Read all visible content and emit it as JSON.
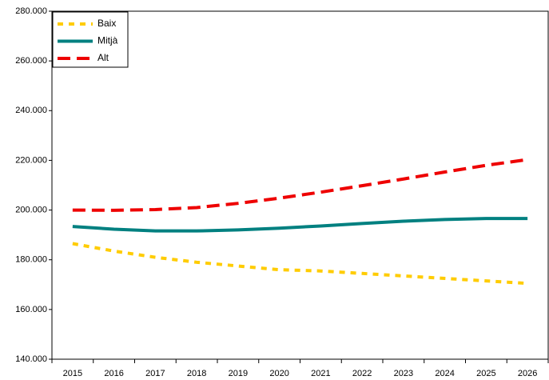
{
  "chart_data": {
    "type": "line",
    "categories": [
      "2015",
      "2016",
      "2017",
      "2018",
      "2019",
      "2020",
      "2021",
      "2022",
      "2023",
      "2024",
      "2025",
      "2026"
    ],
    "series": [
      {
        "name": "Baix",
        "color": "#ffcc00",
        "values": [
          186500,
          183500,
          181000,
          179000,
          177500,
          176000,
          175500,
          174500,
          173500,
          172500,
          171500,
          170500
        ]
      },
      {
        "name": "Mitjà",
        "color": "#008080",
        "values": [
          193400,
          192300,
          191600,
          191600,
          192000,
          192700,
          193600,
          194600,
          195500,
          196200,
          196600,
          196600
        ]
      },
      {
        "name": "Alt",
        "color": "#ee0000",
        "values": [
          200000,
          199900,
          200200,
          201000,
          202700,
          204800,
          207200,
          209800,
          212500,
          215300,
          218000,
          220300
        ]
      }
    ],
    "ylim": [
      140000,
      280000
    ],
    "yticks": [
      {
        "value": 140000,
        "label": "140.000"
      },
      {
        "value": 160000,
        "label": "160.000"
      },
      {
        "value": 180000,
        "label": "180.000"
      },
      {
        "value": 200000,
        "label": "200.000"
      },
      {
        "value": 220000,
        "label": "220.000"
      },
      {
        "value": 240000,
        "label": "240.000"
      },
      {
        "value": 260000,
        "label": "260.000"
      },
      {
        "value": 280000,
        "label": "280.000"
      }
    ],
    "legend": "upper left"
  }
}
